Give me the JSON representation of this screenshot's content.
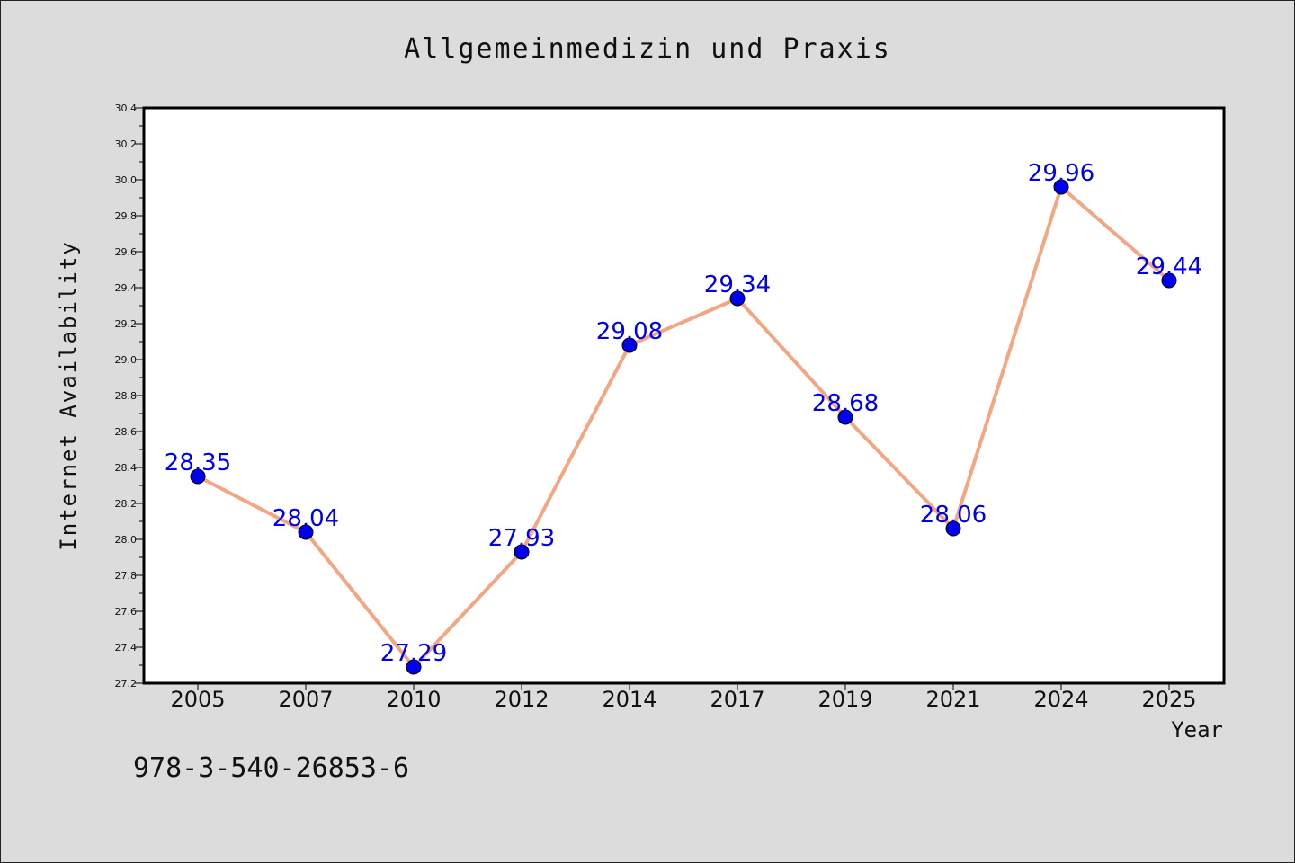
{
  "chart_data": {
    "type": "line",
    "title": "Allgemeinmedizin und Praxis",
    "xlabel": "Year",
    "ylabel": "Internet Availability",
    "categories": [
      "2005",
      "2007",
      "2010",
      "2012",
      "2014",
      "2017",
      "2019",
      "2021",
      "2024",
      "2025"
    ],
    "series": [
      {
        "values": [
          28.35,
          28.04,
          27.29,
          27.93,
          29.08,
          29.34,
          28.68,
          28.06,
          29.96,
          29.44
        ]
      }
    ],
    "data_labels": [
      "28.35",
      "28.04",
      "27.29",
      "27.93",
      "29.08",
      "29.34",
      "28.68",
      "28.06",
      "29.96",
      "29.44"
    ],
    "ylim": [
      27.2,
      30.4
    ],
    "yticks": [
      "27.2",
      "27.4",
      "27.6",
      "27.8",
      "28.0",
      "28.2",
      "28.4",
      "28.6",
      "28.8",
      "29.0",
      "29.2",
      "29.4",
      "29.6",
      "29.8",
      "30.0",
      "30.2",
      "30.4"
    ],
    "grid": false,
    "legend": "none",
    "colors": {
      "line": "#f4a582",
      "marker": "#0000ee",
      "data_label": "#0000ee",
      "background": "#dcdcdc",
      "plot_background": "#ffffff"
    }
  },
  "footer": {
    "isbn": "978-3-540-26853-6"
  }
}
